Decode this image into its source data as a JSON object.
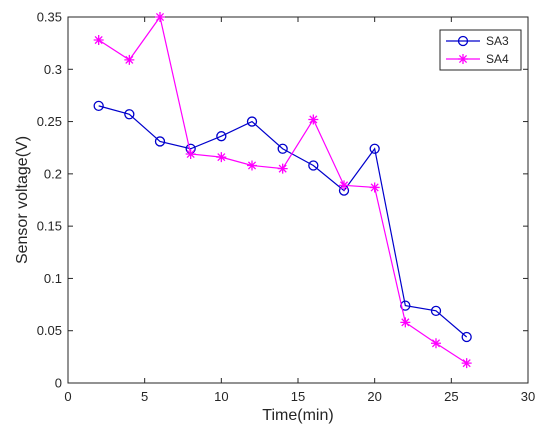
{
  "chart_data": {
    "type": "line",
    "title": "",
    "xlabel": "Time(min)",
    "ylabel": "Sensor voltage(V)",
    "xlim": [
      0,
      30
    ],
    "ylim": [
      0,
      0.35
    ],
    "xticks": [
      0,
      5,
      10,
      15,
      20,
      25,
      30
    ],
    "yticks": [
      0,
      0.05,
      0.1,
      0.15,
      0.2,
      0.25,
      0.3,
      0.35
    ],
    "xtick_labels": [
      "0",
      "5",
      "10",
      "15",
      "20",
      "25",
      "30"
    ],
    "ytick_labels": [
      "0",
      "0.05",
      "0.1",
      "0.15",
      "0.2",
      "0.25",
      "0.3",
      "0.35"
    ],
    "grid": false,
    "legend_position": "top-right",
    "x": [
      2,
      4,
      6,
      8,
      10,
      12,
      14,
      16,
      18,
      20,
      22,
      24,
      26
    ],
    "series": [
      {
        "name": "SA3",
        "color": "#0000cc",
        "marker": "circle",
        "values": [
          0.265,
          0.257,
          0.231,
          0.224,
          0.236,
          0.25,
          0.224,
          0.208,
          0.184,
          0.224,
          0.074,
          0.069,
          0.044
        ]
      },
      {
        "name": "SA4",
        "color": "#ff00ff",
        "marker": "asterisk",
        "values": [
          0.328,
          0.309,
          0.35,
          0.219,
          0.216,
          0.208,
          0.205,
          0.252,
          0.189,
          0.187,
          0.058,
          0.038,
          0.019
        ]
      }
    ]
  }
}
